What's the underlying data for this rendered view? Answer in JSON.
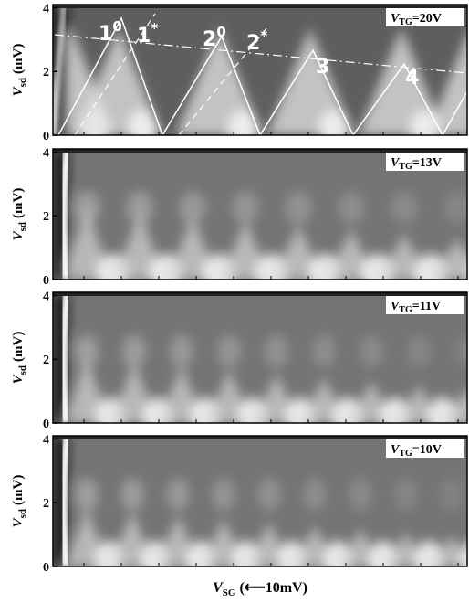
{
  "chart_data": [
    {
      "type": "image",
      "ylabel": {
        "symbol": "V",
        "subscript": "sd",
        "unit": "(mV)"
      },
      "ylim": [
        0,
        4.1
      ],
      "yticks": [
        0,
        2,
        4
      ],
      "label": {
        "symbol": "V",
        "subscript": "TG",
        "text": "=20V"
      },
      "annotations": [
        {
          "text": "1",
          "sup": "0"
        },
        {
          "text": "1",
          "sup": "*"
        },
        {
          "text": "2",
          "sup": "0"
        },
        {
          "text": "2",
          "sup": "*"
        },
        {
          "text": "3"
        },
        {
          "text": "4"
        }
      ]
    },
    {
      "type": "image",
      "ylabel": {
        "symbol": "V",
        "subscript": "sd",
        "unit": "(mV)"
      },
      "ylim": [
        0,
        4.1
      ],
      "yticks": [
        0,
        2,
        4
      ],
      "label": {
        "symbol": "V",
        "subscript": "TG",
        "text": "=13V"
      }
    },
    {
      "type": "image",
      "ylabel": {
        "symbol": "V",
        "subscript": "sd",
        "unit": "(mV)"
      },
      "ylim": [
        0,
        4.1
      ],
      "yticks": [
        0,
        2,
        4
      ],
      "label": {
        "symbol": "V",
        "subscript": "TG",
        "text": "=11V"
      }
    },
    {
      "type": "image",
      "ylabel": {
        "symbol": "V",
        "subscript": "sd",
        "unit": "(mV)"
      },
      "ylim": [
        0,
        4.1
      ],
      "yticks": [
        0,
        2,
        4
      ],
      "label": {
        "symbol": "V",
        "subscript": "TG",
        "text": "=10V"
      },
      "xlabel": {
        "symbol": "V",
        "subscript": "SG",
        "text": "(⟵10mV)"
      }
    }
  ]
}
